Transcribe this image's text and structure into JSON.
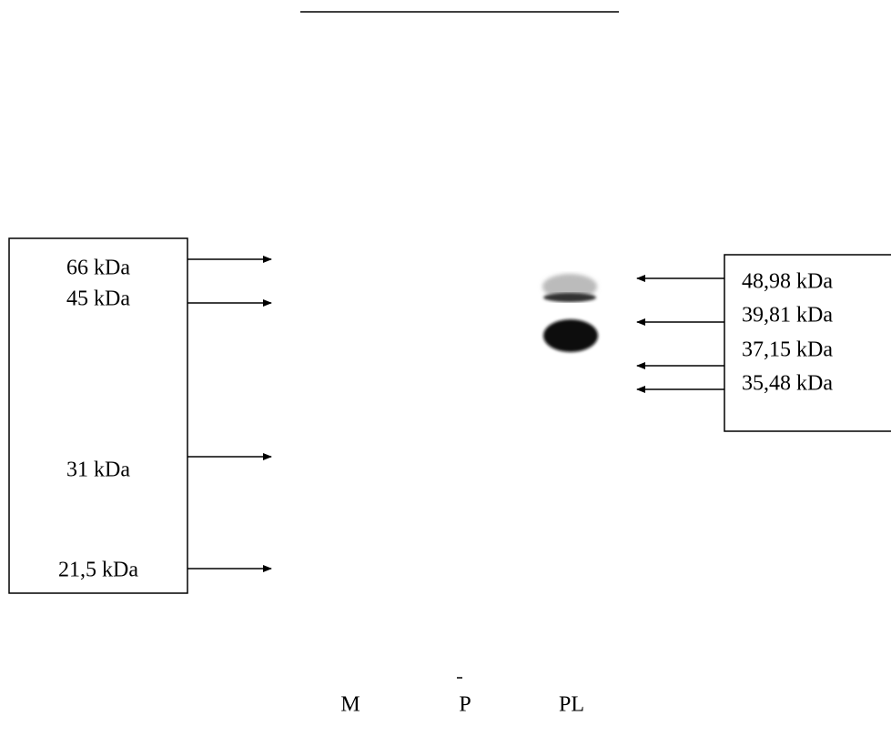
{
  "markers_left": [
    "66 kDa",
    "45 kDa",
    "31 kDa",
    "21,5 kDa"
  ],
  "markers_right": [
    "48,98 kDa",
    "39,81 kDa",
    "37,15 kDa",
    "35,48 kDa"
  ],
  "lanes": [
    "M",
    "P",
    "PL"
  ]
}
